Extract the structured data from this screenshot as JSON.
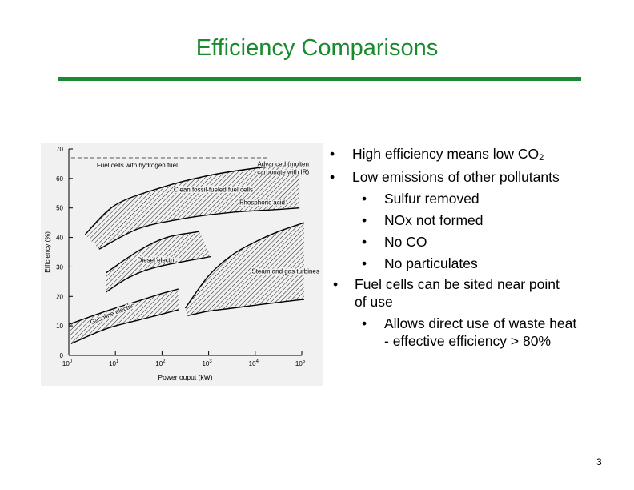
{
  "slide": {
    "title": "Efficiency Comparisons",
    "page_number": "3",
    "accent_color": "#1a8a2e"
  },
  "bullets": [
    {
      "level": 1,
      "text": "High efficiency means low CO",
      "sub": "2"
    },
    {
      "level": 1,
      "text": "Low emissions of other pollutants"
    },
    {
      "level": 2,
      "text": "Sulfur removed"
    },
    {
      "level": 2,
      "text": "NOx not formed"
    },
    {
      "level": 2,
      "text": "No CO"
    },
    {
      "level": 2,
      "text": "No particulates"
    },
    {
      "level": 1,
      "text": "Fuel cells can be sited near point",
      "line2": "of use"
    },
    {
      "level": 2,
      "text": "Allows direct use of waste heat",
      "line2": "- effective efficiency > 80%"
    }
  ],
  "chart_data": {
    "type": "area",
    "xlabel": "Power ouput (kW)",
    "ylabel": "Efficiency (%)",
    "xscale": "log",
    "xlim_log10": [
      0,
      5
    ],
    "x_tick_labels": [
      "10^0",
      "10^1",
      "10^2",
      "10^3",
      "10^4",
      "10^5"
    ],
    "ylim": [
      0,
      70
    ],
    "y_ticks": [
      0,
      10,
      20,
      30,
      40,
      50,
      60,
      70
    ],
    "reference_lines": [
      {
        "label": "Fuel cells with hydrogen fuel",
        "y": 67,
        "x_log10": [
          0.05,
          4.3
        ],
        "style": "dashed"
      }
    ],
    "bands": [
      {
        "name": "Clean fossil-fueled fuel cells",
        "upper": {
          "x_log10": [
            0.35,
            1.0,
            2.0,
            3.0,
            4.0,
            4.95
          ],
          "y": [
            41,
            51,
            57,
            61,
            63.5,
            65
          ]
        },
        "lower": {
          "x_log10": [
            0.65,
            1.5,
            2.5,
            3.5,
            4.5,
            4.95
          ],
          "y": [
            36,
            43,
            46.5,
            48.5,
            49.5,
            50
          ]
        },
        "annotations": [
          "Clean fossil-fueled fuel cells",
          "Advanced (molten",
          "carbonate with IR)",
          "Phosphoric acid"
        ]
      },
      {
        "name": "Diesel electric",
        "upper": {
          "x_log10": [
            0.8,
            1.5,
            2.1,
            2.8
          ],
          "y": [
            28,
            35.5,
            40,
            42
          ]
        },
        "lower": {
          "x_log10": [
            0.8,
            1.3,
            1.9,
            3.05
          ],
          "y": [
            21.5,
            26.5,
            30,
            33.5
          ]
        },
        "annotations": [
          "Diesel electric"
        ]
      },
      {
        "name": "Gasoline electric",
        "upper": {
          "x_log10": [
            0.0,
            0.8,
            1.5,
            2.0,
            2.35
          ],
          "y": [
            10.5,
            15,
            18.5,
            21,
            22.5
          ]
        },
        "lower": {
          "x_log10": [
            0.05,
            0.8,
            1.5,
            2.0,
            2.35
          ],
          "y": [
            4,
            9,
            12,
            14,
            15.5
          ]
        },
        "annotations": [
          "Gasoline electric"
        ]
      },
      {
        "name": "Steam and gas turbines",
        "upper": {
          "x_log10": [
            2.5,
            3.0,
            3.5,
            4.0,
            4.5,
            5.05
          ],
          "y": [
            16,
            27,
            34,
            38.5,
            42,
            45
          ]
        },
        "lower": {
          "x_log10": [
            2.55,
            3.0,
            3.5,
            4.0,
            4.5,
            5.05
          ],
          "y": [
            13.5,
            15,
            16,
            17,
            18,
            19
          ]
        },
        "annotations": [
          "Steam and gas turbines"
        ]
      }
    ]
  }
}
